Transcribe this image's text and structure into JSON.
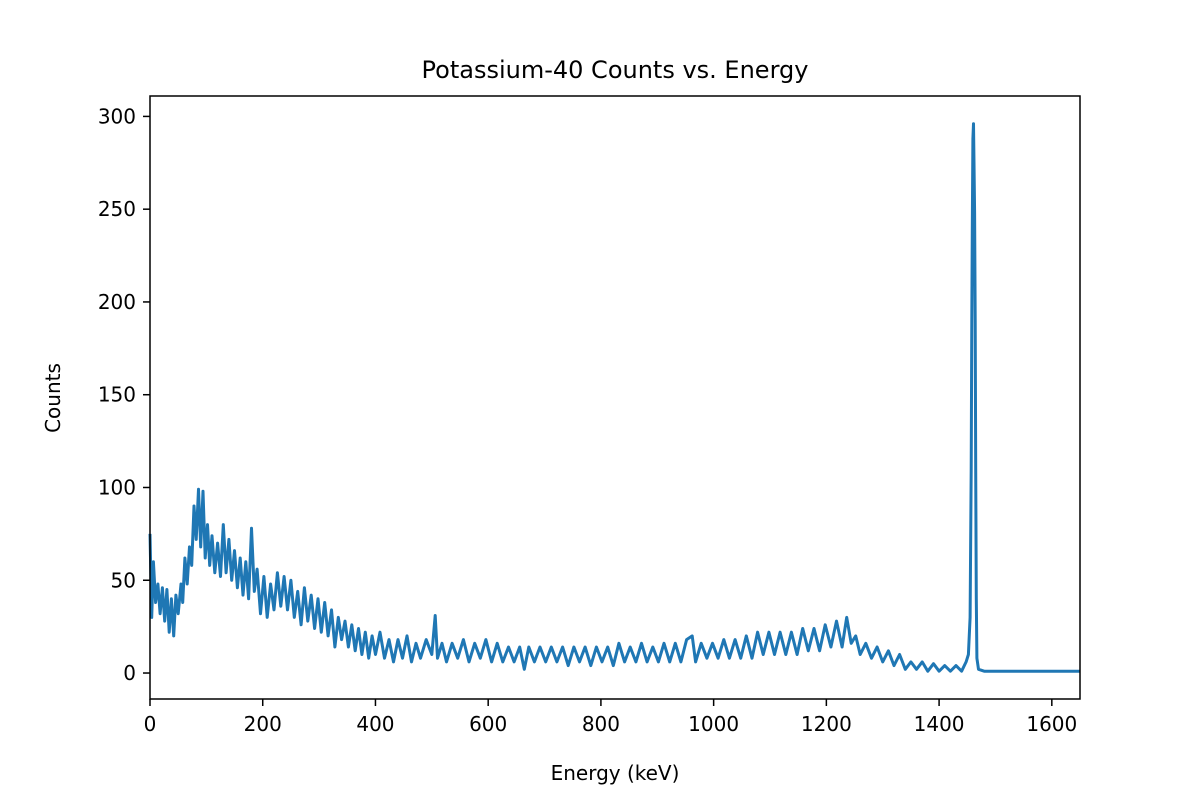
{
  "chart_data": {
    "type": "line",
    "title": "Potassium-40 Counts vs. Energy",
    "xlabel": "Energy (keV)",
    "ylabel": "Counts",
    "xlim": [
      0,
      1650
    ],
    "ylim": [
      -14,
      311
    ],
    "xticks": [
      0,
      200,
      400,
      600,
      800,
      1000,
      1200,
      1400,
      1600
    ],
    "yticks": [
      0,
      50,
      100,
      150,
      200,
      250,
      300
    ],
    "grid": false,
    "legend": "none",
    "series": [
      {
        "color": "#1f77b4",
        "points": [
          [
            0,
            75
          ],
          [
            3,
            30
          ],
          [
            6,
            60
          ],
          [
            10,
            38
          ],
          [
            14,
            48
          ],
          [
            18,
            32
          ],
          [
            22,
            46
          ],
          [
            26,
            28
          ],
          [
            30,
            45
          ],
          [
            34,
            22
          ],
          [
            38,
            40
          ],
          [
            42,
            20
          ],
          [
            46,
            42
          ],
          [
            50,
            32
          ],
          [
            55,
            48
          ],
          [
            58,
            38
          ],
          [
            62,
            62
          ],
          [
            66,
            48
          ],
          [
            70,
            68
          ],
          [
            74,
            58
          ],
          [
            78,
            90
          ],
          [
            82,
            72
          ],
          [
            86,
            99
          ],
          [
            90,
            68
          ],
          [
            94,
            98
          ],
          [
            98,
            62
          ],
          [
            102,
            80
          ],
          [
            106,
            58
          ],
          [
            110,
            74
          ],
          [
            115,
            54
          ],
          [
            120,
            70
          ],
          [
            125,
            52
          ],
          [
            130,
            80
          ],
          [
            135,
            54
          ],
          [
            140,
            72
          ],
          [
            145,
            50
          ],
          [
            150,
            66
          ],
          [
            155,
            46
          ],
          [
            160,
            62
          ],
          [
            165,
            42
          ],
          [
            170,
            60
          ],
          [
            175,
            40
          ],
          [
            180,
            78
          ],
          [
            185,
            44
          ],
          [
            190,
            56
          ],
          [
            196,
            32
          ],
          [
            202,
            52
          ],
          [
            208,
            30
          ],
          [
            214,
            48
          ],
          [
            220,
            34
          ],
          [
            226,
            54
          ],
          [
            232,
            36
          ],
          [
            238,
            52
          ],
          [
            244,
            34
          ],
          [
            250,
            50
          ],
          [
            256,
            30
          ],
          [
            262,
            44
          ],
          [
            268,
            26
          ],
          [
            274,
            46
          ],
          [
            280,
            28
          ],
          [
            286,
            42
          ],
          [
            292,
            24
          ],
          [
            298,
            40
          ],
          [
            304,
            22
          ],
          [
            310,
            38
          ],
          [
            316,
            20
          ],
          [
            322,
            34
          ],
          [
            328,
            14
          ],
          [
            334,
            30
          ],
          [
            340,
            18
          ],
          [
            346,
            28
          ],
          [
            352,
            14
          ],
          [
            358,
            26
          ],
          [
            364,
            12
          ],
          [
            370,
            24
          ],
          [
            376,
            10
          ],
          [
            382,
            22
          ],
          [
            388,
            8
          ],
          [
            394,
            20
          ],
          [
            400,
            10
          ],
          [
            408,
            22
          ],
          [
            416,
            8
          ],
          [
            424,
            18
          ],
          [
            432,
            6
          ],
          [
            440,
            18
          ],
          [
            448,
            8
          ],
          [
            456,
            20
          ],
          [
            464,
            6
          ],
          [
            472,
            16
          ],
          [
            480,
            8
          ],
          [
            490,
            18
          ],
          [
            500,
            10
          ],
          [
            506,
            31
          ],
          [
            510,
            8
          ],
          [
            518,
            16
          ],
          [
            526,
            6
          ],
          [
            536,
            16
          ],
          [
            546,
            8
          ],
          [
            556,
            18
          ],
          [
            566,
            6
          ],
          [
            576,
            16
          ],
          [
            586,
            8
          ],
          [
            596,
            18
          ],
          [
            606,
            6
          ],
          [
            616,
            16
          ],
          [
            626,
            6
          ],
          [
            636,
            14
          ],
          [
            646,
            6
          ],
          [
            656,
            14
          ],
          [
            664,
            2
          ],
          [
            672,
            14
          ],
          [
            682,
            6
          ],
          [
            692,
            14
          ],
          [
            702,
            6
          ],
          [
            712,
            14
          ],
          [
            722,
            6
          ],
          [
            732,
            14
          ],
          [
            742,
            4
          ],
          [
            752,
            14
          ],
          [
            762,
            6
          ],
          [
            772,
            14
          ],
          [
            782,
            4
          ],
          [
            792,
            14
          ],
          [
            802,
            6
          ],
          [
            812,
            14
          ],
          [
            822,
            4
          ],
          [
            832,
            16
          ],
          [
            842,
            6
          ],
          [
            852,
            14
          ],
          [
            862,
            6
          ],
          [
            872,
            16
          ],
          [
            882,
            6
          ],
          [
            892,
            14
          ],
          [
            902,
            6
          ],
          [
            912,
            16
          ],
          [
            922,
            6
          ],
          [
            932,
            16
          ],
          [
            942,
            6
          ],
          [
            952,
            18
          ],
          [
            962,
            20
          ],
          [
            968,
            6
          ],
          [
            978,
            16
          ],
          [
            988,
            8
          ],
          [
            998,
            16
          ],
          [
            1008,
            8
          ],
          [
            1018,
            18
          ],
          [
            1028,
            8
          ],
          [
            1038,
            18
          ],
          [
            1048,
            8
          ],
          [
            1058,
            20
          ],
          [
            1068,
            8
          ],
          [
            1078,
            22
          ],
          [
            1088,
            10
          ],
          [
            1098,
            22
          ],
          [
            1108,
            10
          ],
          [
            1118,
            22
          ],
          [
            1128,
            10
          ],
          [
            1138,
            22
          ],
          [
            1148,
            10
          ],
          [
            1158,
            24
          ],
          [
            1168,
            12
          ],
          [
            1178,
            24
          ],
          [
            1188,
            12
          ],
          [
            1198,
            26
          ],
          [
            1208,
            14
          ],
          [
            1218,
            28
          ],
          [
            1228,
            14
          ],
          [
            1236,
            30
          ],
          [
            1244,
            16
          ],
          [
            1252,
            20
          ],
          [
            1260,
            10
          ],
          [
            1270,
            16
          ],
          [
            1280,
            8
          ],
          [
            1290,
            14
          ],
          [
            1300,
            6
          ],
          [
            1310,
            12
          ],
          [
            1320,
            4
          ],
          [
            1330,
            10
          ],
          [
            1340,
            2
          ],
          [
            1350,
            6
          ],
          [
            1360,
            2
          ],
          [
            1370,
            6
          ],
          [
            1380,
            1
          ],
          [
            1390,
            5
          ],
          [
            1400,
            1
          ],
          [
            1410,
            4
          ],
          [
            1420,
            1
          ],
          [
            1430,
            4
          ],
          [
            1440,
            1
          ],
          [
            1448,
            6
          ],
          [
            1452,
            10
          ],
          [
            1455,
            30
          ],
          [
            1457,
            110
          ],
          [
            1458,
            190
          ],
          [
            1459,
            240
          ],
          [
            1460,
            288
          ],
          [
            1461,
            296
          ],
          [
            1462,
            275
          ],
          [
            1463,
            248
          ],
          [
            1464,
            190
          ],
          [
            1465,
            110
          ],
          [
            1466,
            40
          ],
          [
            1467,
            8
          ],
          [
            1470,
            2
          ],
          [
            1480,
            1
          ],
          [
            1500,
            1
          ],
          [
            1550,
            1
          ],
          [
            1600,
            1
          ],
          [
            1650,
            1
          ]
        ]
      }
    ]
  }
}
